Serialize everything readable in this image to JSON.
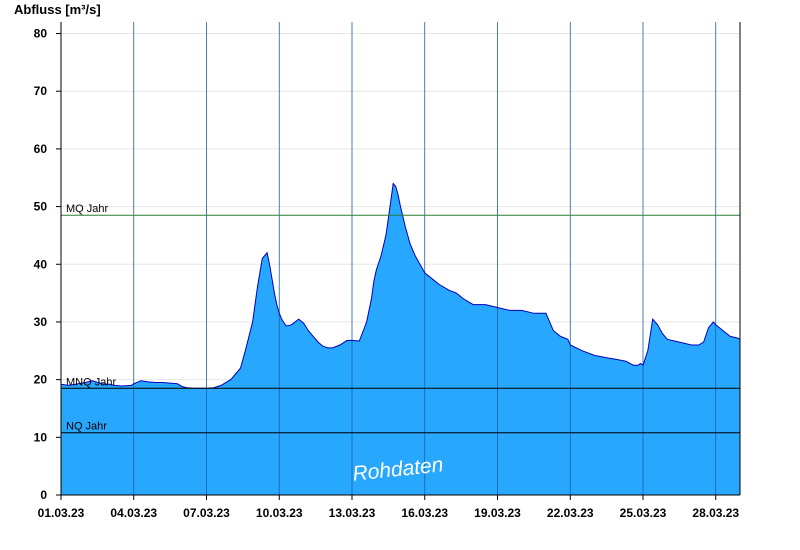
{
  "chart_data": {
    "type": "area",
    "ylabel": "Abfluss [m³/s]",
    "ylim": [
      0,
      82
    ],
    "yticks": [
      0,
      10,
      20,
      30,
      40,
      50,
      60,
      70,
      80
    ],
    "xlim": [
      0,
      28
    ],
    "xticks": [
      {
        "x": 0,
        "label": "01.03.23"
      },
      {
        "x": 3,
        "label": "04.03.23"
      },
      {
        "x": 6,
        "label": "07.03.23"
      },
      {
        "x": 9,
        "label": "10.03.23"
      },
      {
        "x": 12,
        "label": "13.03.23"
      },
      {
        "x": 15,
        "label": "16.03.23"
      },
      {
        "x": 18,
        "label": "19.03.23"
      },
      {
        "x": 21,
        "label": "22.03.23"
      },
      {
        "x": 24,
        "label": "25.03.23"
      },
      {
        "x": 27,
        "label": "28.03.23"
      }
    ],
    "grid": true,
    "reference_lines": [
      {
        "label": "MQ Jahr",
        "value": 48.5,
        "color": "#2e7d32"
      },
      {
        "label": "MNQ Jahr",
        "value": 18.5,
        "color": "#000000"
      },
      {
        "label": "NQ Jahr",
        "value": 10.8,
        "color": "#000000"
      }
    ],
    "watermark": "Rohdaten",
    "fill_color": "#28a7ff",
    "line_color": "#0000b8",
    "series": [
      {
        "x": [
          0,
          0.3,
          0.6,
          1.0,
          1.3,
          1.7,
          2.0,
          2.2,
          2.5,
          2.9,
          3.0,
          3.3,
          3.6,
          3.9,
          4.2,
          4.5,
          4.8,
          5.0,
          5.2,
          5.5,
          5.8,
          6.0,
          6.3,
          6.6,
          7.0,
          7.4,
          7.6,
          7.9,
          8.1,
          8.3,
          8.5,
          8.6,
          8.7,
          8.8,
          8.9,
          9.0,
          9.1,
          9.2,
          9.3,
          9.5,
          9.8,
          10.0,
          10.2,
          10.4,
          10.6,
          10.8,
          11.0,
          11.2,
          11.5,
          11.8,
          12.0,
          12.3,
          12.6,
          12.8,
          12.9,
          13.0,
          13.2,
          13.4,
          13.5,
          13.6,
          13.7,
          13.8,
          13.9,
          14.0,
          14.2,
          14.4,
          14.6,
          14.8,
          15.0,
          15.3,
          15.6,
          16.0,
          16.3,
          16.6,
          16.8,
          17.0,
          17.5,
          18.0,
          18.5,
          19.0,
          19.5,
          19.8,
          20.0,
          20.3,
          20.6,
          20.9,
          21.0,
          21.5,
          22.0,
          22.5,
          22.9,
          23.3,
          23.6,
          23.8,
          23.9,
          24.0,
          24.2,
          24.4,
          24.6,
          24.8,
          25.0,
          25.5,
          26.0,
          26.3,
          26.5,
          26.7,
          26.9,
          27.0,
          27.3,
          27.6,
          27.9,
          28.0
        ],
        "values": [
          19.2,
          19.0,
          19.2,
          19.5,
          19.8,
          19.3,
          19.2,
          19.0,
          18.9,
          19.0,
          19.3,
          19.8,
          19.6,
          19.5,
          19.5,
          19.4,
          19.3,
          18.8,
          18.6,
          18.5,
          18.5,
          18.5,
          18.6,
          19.0,
          20.0,
          22.0,
          25.0,
          30.0,
          36.0,
          41.0,
          42.0,
          40.0,
          37.5,
          35.0,
          33.0,
          31.5,
          30.5,
          29.8,
          29.3,
          29.5,
          30.5,
          29.8,
          28.5,
          27.5,
          26.5,
          25.8,
          25.5,
          25.5,
          26.0,
          26.8,
          26.8,
          26.7,
          30.0,
          34.0,
          37.0,
          39.0,
          41.5,
          45.0,
          48.0,
          51.0,
          54.0,
          53.5,
          52.0,
          50.0,
          46.5,
          43.5,
          41.5,
          40.0,
          38.5,
          37.5,
          36.5,
          35.5,
          35.0,
          34.0,
          33.5,
          33.0,
          33.0,
          32.5,
          32.0,
          32.0,
          31.5,
          31.5,
          31.5,
          28.5,
          27.5,
          27.0,
          26.0,
          25.0,
          24.2,
          23.8,
          23.5,
          23.2,
          22.5,
          22.5,
          22.8,
          22.5,
          25.0,
          30.5,
          29.5,
          28.0,
          27.0,
          26.5,
          26.0,
          26.0,
          26.5,
          29.0,
          30.0,
          29.5,
          28.5,
          27.5,
          27.2,
          27.0
        ]
      }
    ]
  }
}
